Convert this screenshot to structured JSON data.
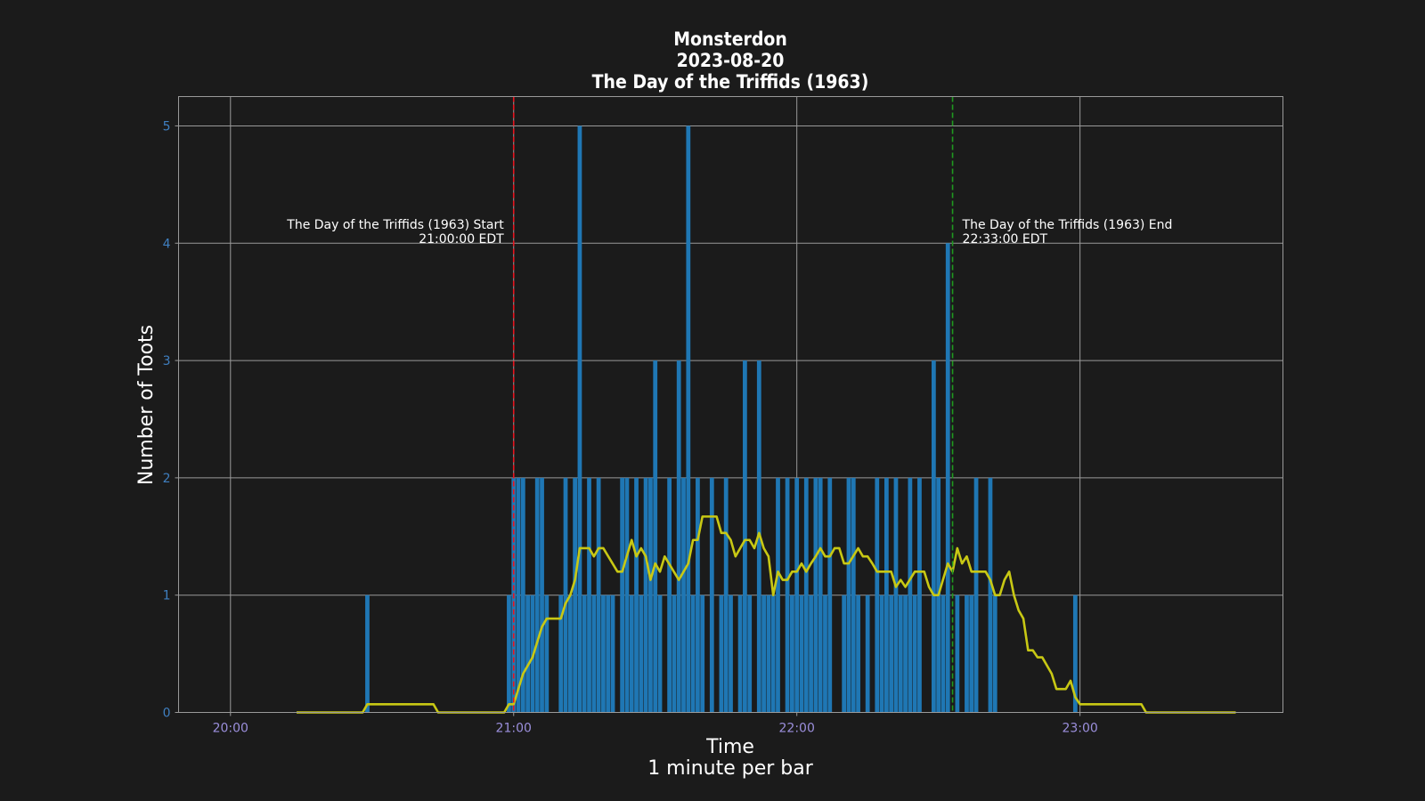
{
  "chart_data": {
    "type": "bar",
    "title": [
      "Monsterdon",
      "2023-08-20",
      "The Day of the Triffids (1963)"
    ],
    "xlabel": [
      "Time",
      "1 minute per bar"
    ],
    "ylabel": "Number of Toots",
    "x_unit": "time (EDT, 2023-08-20)",
    "xlim": [
      "19:49",
      "23:43"
    ],
    "ylim": [
      0,
      5.25
    ],
    "yticks": [
      0,
      1,
      2,
      3,
      4,
      5
    ],
    "xticks": [
      "20:00",
      "21:00",
      "22:00",
      "23:00"
    ],
    "grid": true,
    "bar_width_minutes": 1,
    "series": [
      {
        "kind": "bar",
        "color": "#1f77b4",
        "points": [
          [
            "20:29",
            1
          ],
          [
            "20:59",
            1
          ],
          [
            "21:00",
            2
          ],
          [
            "21:01",
            2
          ],
          [
            "21:02",
            2
          ],
          [
            "21:03",
            1
          ],
          [
            "21:04",
            1
          ],
          [
            "21:05",
            2
          ],
          [
            "21:06",
            2
          ],
          [
            "21:07",
            1
          ],
          [
            "21:10",
            1
          ],
          [
            "21:11",
            2
          ],
          [
            "21:12",
            1
          ],
          [
            "21:13",
            2
          ],
          [
            "21:14",
            5
          ],
          [
            "21:15",
            1
          ],
          [
            "21:16",
            2
          ],
          [
            "21:17",
            1
          ],
          [
            "21:18",
            2
          ],
          [
            "21:19",
            1
          ],
          [
            "21:20",
            1
          ],
          [
            "21:21",
            1
          ],
          [
            "21:23",
            2
          ],
          [
            "21:24",
            2
          ],
          [
            "21:25",
            1
          ],
          [
            "21:26",
            2
          ],
          [
            "21:27",
            1
          ],
          [
            "21:28",
            2
          ],
          [
            "21:29",
            2
          ],
          [
            "21:30",
            3
          ],
          [
            "21:31",
            1
          ],
          [
            "21:33",
            2
          ],
          [
            "21:34",
            1
          ],
          [
            "21:35",
            3
          ],
          [
            "21:36",
            2
          ],
          [
            "21:37",
            5
          ],
          [
            "21:38",
            1
          ],
          [
            "21:39",
            2
          ],
          [
            "21:40",
            1
          ],
          [
            "21:42",
            2
          ],
          [
            "21:44",
            1
          ],
          [
            "21:45",
            2
          ],
          [
            "21:46",
            1
          ],
          [
            "21:48",
            1
          ],
          [
            "21:49",
            3
          ],
          [
            "21:50",
            1
          ],
          [
            "21:52",
            3
          ],
          [
            "21:53",
            1
          ],
          [
            "21:54",
            1
          ],
          [
            "21:55",
            1
          ],
          [
            "21:56",
            2
          ],
          [
            "21:58",
            2
          ],
          [
            "21:59",
            1
          ],
          [
            "22:00",
            2
          ],
          [
            "22:01",
            1
          ],
          [
            "22:02",
            2
          ],
          [
            "22:03",
            1
          ],
          [
            "22:04",
            2
          ],
          [
            "22:05",
            2
          ],
          [
            "22:06",
            1
          ],
          [
            "22:07",
            2
          ],
          [
            "22:10",
            1
          ],
          [
            "22:11",
            2
          ],
          [
            "22:12",
            2
          ],
          [
            "22:13",
            1
          ],
          [
            "22:15",
            1
          ],
          [
            "22:17",
            2
          ],
          [
            "22:18",
            1
          ],
          [
            "22:19",
            2
          ],
          [
            "22:20",
            1
          ],
          [
            "22:21",
            2
          ],
          [
            "22:22",
            1
          ],
          [
            "22:23",
            1
          ],
          [
            "22:24",
            2
          ],
          [
            "22:25",
            1
          ],
          [
            "22:26",
            2
          ],
          [
            "22:29",
            3
          ],
          [
            "22:30",
            2
          ],
          [
            "22:31",
            1
          ],
          [
            "22:32",
            4
          ],
          [
            "22:34",
            1
          ],
          [
            "22:36",
            1
          ],
          [
            "22:37",
            1
          ],
          [
            "22:38",
            2
          ],
          [
            "22:41",
            2
          ],
          [
            "22:42",
            1
          ],
          [
            "22:59",
            1
          ]
        ]
      },
      {
        "kind": "line",
        "color": "#c8c814",
        "points": [
          [
            "20:14",
            0
          ],
          [
            "20:28",
            0
          ],
          [
            "20:29",
            0.07
          ],
          [
            "20:43",
            0.07
          ],
          [
            "20:44",
            0
          ],
          [
            "20:58",
            0
          ],
          [
            "20:59",
            0.07
          ],
          [
            "21:00",
            0.07
          ],
          [
            "21:02",
            0.33
          ],
          [
            "21:04",
            0.47
          ],
          [
            "21:06",
            0.73
          ],
          [
            "21:07",
            0.8
          ],
          [
            "21:10",
            0.8
          ],
          [
            "21:11",
            0.93
          ],
          [
            "21:12",
            1.0
          ],
          [
            "21:13",
            1.13
          ],
          [
            "21:14",
            1.4
          ],
          [
            "21:16",
            1.4
          ],
          [
            "21:17",
            1.33
          ],
          [
            "21:18",
            1.4
          ],
          [
            "21:19",
            1.4
          ],
          [
            "21:22",
            1.2
          ],
          [
            "21:23",
            1.2
          ],
          [
            "21:25",
            1.47
          ],
          [
            "21:26",
            1.33
          ],
          [
            "21:27",
            1.4
          ],
          [
            "21:28",
            1.33
          ],
          [
            "21:29",
            1.13
          ],
          [
            "21:30",
            1.27
          ],
          [
            "21:31",
            1.2
          ],
          [
            "21:32",
            1.33
          ],
          [
            "21:35",
            1.13
          ],
          [
            "21:37",
            1.27
          ],
          [
            "21:38",
            1.47
          ],
          [
            "21:39",
            1.47
          ],
          [
            "21:40",
            1.67
          ],
          [
            "21:43",
            1.67
          ],
          [
            "21:44",
            1.53
          ],
          [
            "21:45",
            1.53
          ],
          [
            "21:46",
            1.47
          ],
          [
            "21:47",
            1.33
          ],
          [
            "21:48",
            1.4
          ],
          [
            "21:49",
            1.47
          ],
          [
            "21:50",
            1.47
          ],
          [
            "21:51",
            1.4
          ],
          [
            "21:52",
            1.53
          ],
          [
            "21:53",
            1.4
          ],
          [
            "21:54",
            1.33
          ],
          [
            "21:55",
            1.0
          ],
          [
            "21:56",
            1.2
          ],
          [
            "21:57",
            1.13
          ],
          [
            "21:58",
            1.13
          ],
          [
            "21:59",
            1.2
          ],
          [
            "22:00",
            1.2
          ],
          [
            "22:01",
            1.27
          ],
          [
            "22:02",
            1.2
          ],
          [
            "22:03",
            1.27
          ],
          [
            "22:04",
            1.33
          ],
          [
            "22:05",
            1.4
          ],
          [
            "22:06",
            1.33
          ],
          [
            "22:07",
            1.33
          ],
          [
            "22:08",
            1.4
          ],
          [
            "22:09",
            1.4
          ],
          [
            "22:10",
            1.27
          ],
          [
            "22:11",
            1.27
          ],
          [
            "22:13",
            1.4
          ],
          [
            "22:14",
            1.33
          ],
          [
            "22:15",
            1.33
          ],
          [
            "22:16",
            1.27
          ],
          [
            "22:17",
            1.2
          ],
          [
            "22:20",
            1.2
          ],
          [
            "22:21",
            1.07
          ],
          [
            "22:22",
            1.13
          ],
          [
            "22:23",
            1.07
          ],
          [
            "22:25",
            1.2
          ],
          [
            "22:27",
            1.2
          ],
          [
            "22:28",
            1.07
          ],
          [
            "22:29",
            1.0
          ],
          [
            "22:30",
            1.0
          ],
          [
            "22:32",
            1.27
          ],
          [
            "22:33",
            1.2
          ],
          [
            "22:34",
            1.4
          ],
          [
            "22:35",
            1.27
          ],
          [
            "22:36",
            1.33
          ],
          [
            "22:37",
            1.2
          ],
          [
            "22:40",
            1.2
          ],
          [
            "22:41",
            1.13
          ],
          [
            "22:42",
            1.0
          ],
          [
            "22:43",
            1.0
          ],
          [
            "22:44",
            1.13
          ],
          [
            "22:45",
            1.2
          ],
          [
            "22:46",
            1.0
          ],
          [
            "22:47",
            0.87
          ],
          [
            "22:48",
            0.8
          ],
          [
            "22:49",
            0.53
          ],
          [
            "22:50",
            0.53
          ],
          [
            "22:51",
            0.47
          ],
          [
            "22:52",
            0.47
          ],
          [
            "22:54",
            0.33
          ],
          [
            "22:55",
            0.2
          ],
          [
            "22:57",
            0.2
          ],
          [
            "22:58",
            0.27
          ],
          [
            "22:59",
            0.13
          ],
          [
            "23:00",
            0.07
          ],
          [
            "23:13",
            0.07
          ],
          [
            "23:14",
            0
          ],
          [
            "23:33",
            0
          ]
        ]
      }
    ],
    "markers": [
      {
        "time": "21:00",
        "color": "#e8141e",
        "label": [
          "The Day of the Triffids (1963) Start",
          "21:00:00 EDT"
        ],
        "align": "left"
      },
      {
        "time": "22:33",
        "color": "#1f9a1f",
        "label": [
          "The Day of the Triffids (1963) End",
          "22:33:00 EDT"
        ],
        "align": "right"
      }
    ],
    "colors": {
      "background": "#1b1b1b",
      "grid": "#9a9a9a",
      "ytick": "#3f7fc0",
      "xtick": "#9b8fdc",
      "text": "#ffffff"
    }
  }
}
